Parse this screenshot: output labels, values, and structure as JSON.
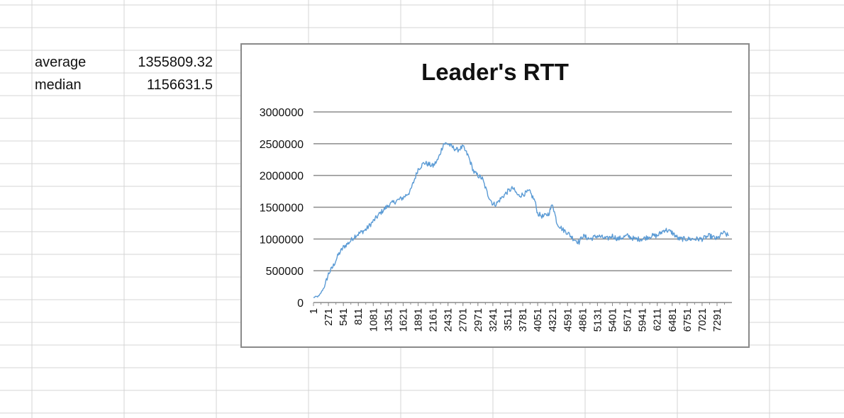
{
  "sheet": {
    "cells": [
      {
        "id": "average-label",
        "text": "average"
      },
      {
        "id": "average-value",
        "text": "1355809.32"
      },
      {
        "id": "median-label",
        "text": "median"
      },
      {
        "id": "median-value",
        "text": "1156631.5"
      }
    ]
  },
  "chart_data": {
    "type": "line",
    "title": "Leader's RTT",
    "xlabel": "",
    "ylabel": "",
    "ylim": [
      0,
      3000000
    ],
    "yticks": [
      "3000000",
      "2500000",
      "2000000",
      "1500000",
      "1000000",
      "500000",
      "0"
    ],
    "x_categories": [
      "1",
      "271",
      "541",
      "811",
      "1081",
      "1351",
      "1621",
      "1891",
      "2161",
      "2431",
      "2701",
      "2971",
      "3241",
      "3511",
      "3781",
      "4051",
      "4321",
      "4591",
      "4861",
      "5131",
      "5401",
      "5671",
      "5941",
      "6211",
      "6481",
      "6751",
      "7021",
      "7291"
    ],
    "x_max": 7560,
    "grid": true,
    "legend": "none",
    "line_color": "#5b9bd5",
    "series": [
      {
        "x": [
          1,
          100,
          200,
          271,
          350,
          450,
          541,
          650,
          750,
          811,
          950,
          1081,
          1200,
          1351,
          1500,
          1621,
          1750,
          1891,
          2000,
          2161,
          2250,
          2350,
          2431,
          2500,
          2600,
          2701,
          2800,
          2900,
          2971,
          3050,
          3150,
          3241,
          3300,
          3400,
          3511,
          3600,
          3700,
          3781,
          3900,
          4000,
          4051,
          4150,
          4250,
          4321,
          4400,
          4500,
          4591,
          4700,
          4800,
          4861,
          5000,
          5131,
          5300,
          5401,
          5500,
          5671,
          5800,
          5941,
          6100,
          6211,
          6350,
          6481,
          6600,
          6751,
          6900,
          7021,
          7150,
          7291,
          7400,
          7500
        ],
        "y": [
          80000,
          100000,
          250000,
          450000,
          560000,
          750000,
          870000,
          950000,
          1050000,
          1080000,
          1150000,
          1280000,
          1400000,
          1530000,
          1600000,
          1650000,
          1750000,
          2100000,
          2200000,
          2150000,
          2250000,
          2500000,
          2500000,
          2450000,
          2400000,
          2450000,
          2300000,
          2050000,
          2000000,
          1950000,
          1700000,
          1550000,
          1550000,
          1650000,
          1750000,
          1800000,
          1680000,
          1700000,
          1750000,
          1600000,
          1400000,
          1350000,
          1400000,
          1550000,
          1250000,
          1150000,
          1100000,
          1000000,
          950000,
          1050000,
          1000000,
          1050000,
          1000000,
          1050000,
          1000000,
          1050000,
          1000000,
          1000000,
          1050000,
          1050000,
          1150000,
          1100000,
          1000000,
          1000000,
          1000000,
          1000000,
          1050000,
          1000000,
          1100000,
          1050000
        ]
      }
    ]
  }
}
